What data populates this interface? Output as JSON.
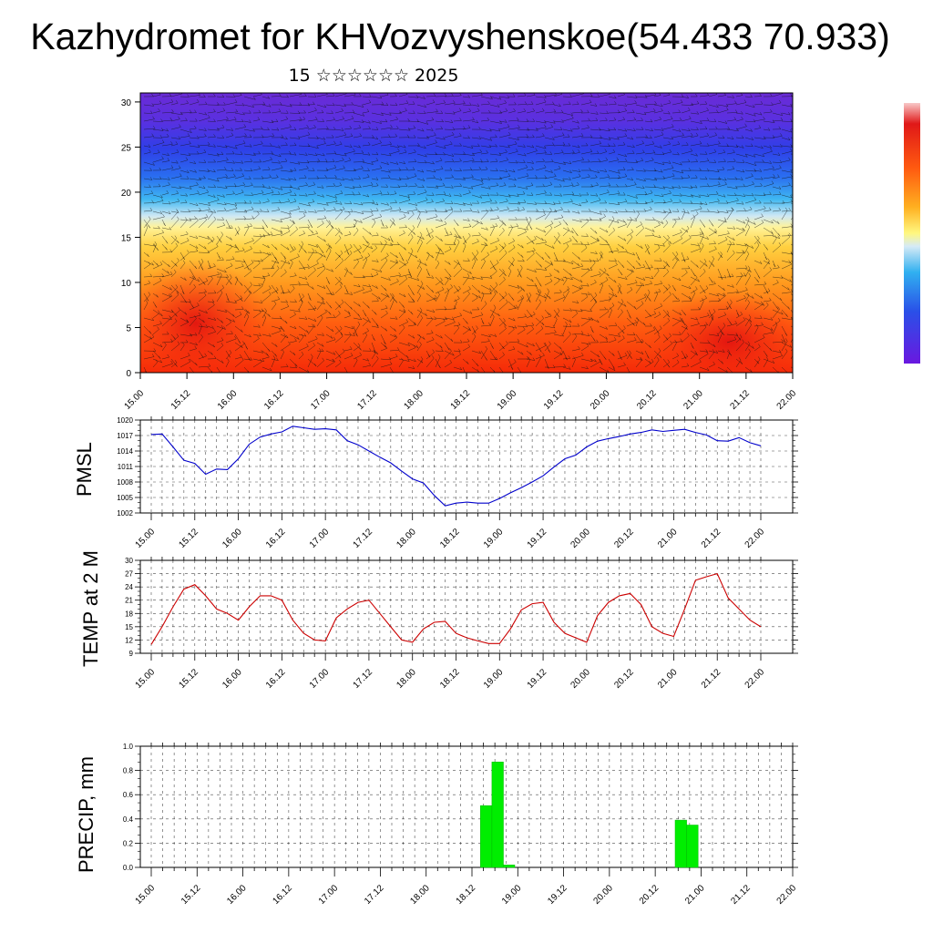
{
  "title": "Kazhydromet for KHVozvyshenskoe(54.433 70.933)",
  "subtitle": "15 ☆☆☆☆☆☆ 2025",
  "time_labels": [
    "15.00",
    "15.12",
    "16.00",
    "16.12",
    "17.00",
    "17.12",
    "18.00",
    "18.12",
    "19.00",
    "19.12",
    "20.00",
    "20.12",
    "21.00",
    "21.12",
    "22.00"
  ],
  "chart_data": [
    {
      "type": "heatmap",
      "title": "",
      "xlabel": "",
      "ylabel": "",
      "ylim": [
        0,
        31
      ],
      "y_ticks": [
        0,
        5,
        10,
        15,
        20,
        25,
        30
      ],
      "x_categories": [
        "15.00",
        "15.12",
        "16.00",
        "16.12",
        "17.00",
        "17.12",
        "18.00",
        "18.12",
        "19.00",
        "19.12",
        "20.00",
        "20.12",
        "21.00",
        "21.12",
        "22.00"
      ],
      "overlay": "wind vectors",
      "colorbar": "violet-blue-cyan-yellow-orange-red"
    },
    {
      "type": "line",
      "ylabel": "PMSL",
      "ylim": [
        1002,
        1020
      ],
      "y_ticks": [
        1002,
        1005,
        1008,
        1011,
        1014,
        1017,
        1020
      ],
      "color": "#0000cc",
      "series": [
        {
          "values": [
            1017.2,
            1017.3,
            1014.8,
            1012.2,
            1011.6,
            1009.5,
            1010.5,
            1010.4,
            1012.5,
            1015.3,
            1016.7,
            1017.3,
            1017.7,
            1018.8,
            1018.5,
            1018.2,
            1018.3,
            1018.1,
            1016.0,
            1015.2,
            1014.0,
            1012.8,
            1011.7,
            1010.1,
            1008.6,
            1007.8,
            1005.4,
            1003.4,
            1003.9,
            1004.1,
            1003.9,
            1003.9,
            1004.8,
            1005.9,
            1006.9,
            1008.0,
            1009.2,
            1010.9,
            1012.5,
            1013.2,
            1014.8,
            1015.9,
            1016.4,
            1016.8,
            1017.3,
            1017.6,
            1018.1,
            1017.8,
            1018.0,
            1018.2,
            1017.6,
            1017.1,
            1016.0,
            1015.9,
            1016.6,
            1015.6,
            1015.0
          ]
        }
      ]
    },
    {
      "type": "line",
      "ylabel": "TEMP at 2 M",
      "ylim": [
        9,
        30
      ],
      "y_ticks": [
        9,
        12,
        15,
        18,
        21,
        24,
        27,
        30
      ],
      "color": "#cc0000",
      "series": [
        {
          "values": [
            11.0,
            15.0,
            19.5,
            23.5,
            24.5,
            22.0,
            19.0,
            18.0,
            16.5,
            19.5,
            22.0,
            22.0,
            21.0,
            16.5,
            13.5,
            12.0,
            11.8,
            17.0,
            19.0,
            20.5,
            21.0,
            18.0,
            15.0,
            12.0,
            11.5,
            14.5,
            16.0,
            16.2,
            13.5,
            12.5,
            11.8,
            11.2,
            11.2,
            14.5,
            18.8,
            20.2,
            20.5,
            16.0,
            13.5,
            12.5,
            11.5,
            17.5,
            20.5,
            22.0,
            22.5,
            20.0,
            15.0,
            13.5,
            12.8,
            19.0,
            25.5,
            26.3,
            27.0,
            21.5,
            19.0,
            16.5,
            15.0
          ]
        }
      ]
    },
    {
      "type": "bar",
      "ylabel": "PRECIP, mm",
      "ylim": [
        0.0,
        1.0
      ],
      "y_ticks": [
        "0.0",
        "0.2",
        "0.4",
        "0.6",
        "0.8",
        "1.0"
      ],
      "color": "#00ee00",
      "series": [
        {
          "values": [
            0,
            0,
            0,
            0,
            0,
            0,
            0,
            0,
            0,
            0,
            0,
            0,
            0,
            0,
            0,
            0,
            0,
            0,
            0,
            0,
            0,
            0,
            0,
            0,
            0,
            0,
            0,
            0,
            0,
            0.51,
            0.87,
            0.02,
            0,
            0,
            0,
            0,
            0,
            0,
            0,
            0,
            0,
            0,
            0,
            0,
            0,
            0,
            0.39,
            0.35,
            0,
            0,
            0,
            0,
            0,
            0,
            0,
            0,
            0
          ]
        }
      ]
    }
  ]
}
